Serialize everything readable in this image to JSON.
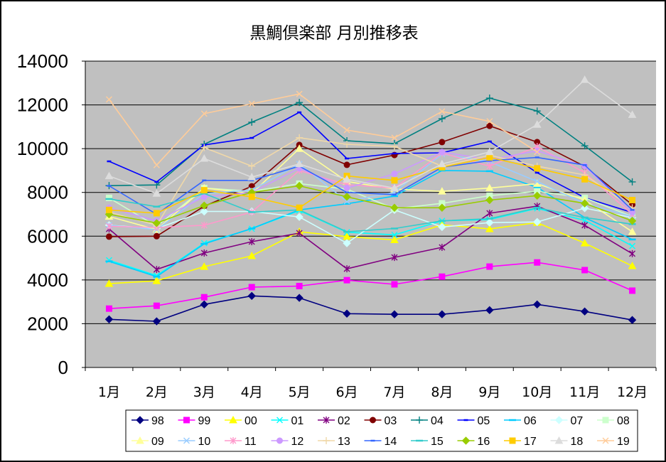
{
  "chart_data": {
    "type": "line",
    "title": "黒鯛倶楽部 月別推移表",
    "categories": [
      "1月",
      "2月",
      "3月",
      "4月",
      "5月",
      "6月",
      "7月",
      "8月",
      "9月",
      "10月",
      "11月",
      "12月"
    ],
    "ylim": [
      0,
      14000
    ],
    "yticks": [
      0,
      2000,
      4000,
      6000,
      8000,
      10000,
      12000,
      14000
    ],
    "grid": true,
    "legend": "bottom",
    "plot_background": "#C0C0C0",
    "series": [
      {
        "name": "98",
        "color": "#000080",
        "marker": "diamond",
        "values": [
          2200,
          2110,
          2880,
          3270,
          3180,
          2460,
          2430,
          2430,
          2620,
          2880,
          2560,
          2170
        ]
      },
      {
        "name": "99",
        "color": "#FF00FF",
        "marker": "square",
        "values": [
          2690,
          2820,
          3210,
          3670,
          3720,
          3990,
          3800,
          4150,
          4610,
          4800,
          4450,
          3510
        ]
      },
      {
        "name": "00",
        "color": "#FFFF00",
        "marker": "triangle",
        "values": [
          3830,
          3960,
          4610,
          5100,
          6200,
          5980,
          5830,
          6520,
          6330,
          6620,
          5680,
          4640
        ]
      },
      {
        "name": "01",
        "color": "#00FFFF",
        "marker": "x",
        "values": [
          4900,
          4200,
          5680,
          6340,
          7170,
          6180,
          6060,
          6700,
          6760,
          7270,
          6720,
          5550
        ]
      },
      {
        "name": "02",
        "color": "#800080",
        "marker": "asterisk",
        "values": [
          6330,
          4480,
          5230,
          5750,
          6140,
          4510,
          5030,
          5490,
          7050,
          7370,
          6500,
          5200
        ]
      },
      {
        "name": "03",
        "color": "#800000",
        "marker": "circle",
        "values": [
          5980,
          6000,
          7370,
          8280,
          10170,
          9260,
          9710,
          10300,
          11040,
          10300,
          9190,
          7440
        ]
      },
      {
        "name": "04",
        "color": "#008080",
        "marker": "plus",
        "values": [
          8310,
          8340,
          10200,
          11210,
          12110,
          10360,
          10230,
          11370,
          12310,
          11720,
          10130,
          8480
        ]
      },
      {
        "name": "05",
        "color": "#0000FF",
        "marker": "dash",
        "values": [
          9420,
          8480,
          10170,
          10490,
          11660,
          9550,
          9780,
          9810,
          10330,
          8900,
          7760,
          7080
        ]
      },
      {
        "name": "06",
        "color": "#00CCFF",
        "marker": "longdash",
        "values": [
          4850,
          4150,
          5650,
          6350,
          7200,
          7480,
          7830,
          9000,
          8970,
          8230,
          6850,
          5850
        ]
      },
      {
        "name": "07",
        "color": "#CCFFFF",
        "marker": "diamond",
        "values": [
          6500,
          6350,
          7130,
          7130,
          6880,
          5680,
          7200,
          6420,
          6620,
          6650,
          7280,
          6850
        ]
      },
      {
        "name": "08",
        "color": "#CCFFCC",
        "marker": "square",
        "values": [
          7750,
          6450,
          8200,
          8050,
          8400,
          8150,
          7250,
          7500,
          7850,
          8050,
          7750,
          6900
        ]
      },
      {
        "name": "09",
        "color": "#FFFF99",
        "marker": "triangle",
        "values": [
          6900,
          6300,
          8200,
          7950,
          10000,
          8500,
          8150,
          8050,
          8200,
          8400,
          7650,
          6200
        ]
      },
      {
        "name": "10",
        "color": "#99CCFF",
        "marker": "x",
        "values": [
          6500,
          6300,
          7950,
          8100,
          9300,
          7600,
          8000,
          9750,
          9400,
          8500,
          7500,
          6900
        ]
      },
      {
        "name": "11",
        "color": "#FF99CC",
        "marker": "asterisk",
        "values": [
          6450,
          6400,
          6500,
          7100,
          9000,
          8350,
          8200,
          9800,
          9200,
          10100,
          8900,
          7000
        ]
      },
      {
        "name": "12",
        "color": "#CC99FF",
        "marker": "circle",
        "values": [
          7300,
          6700,
          7800,
          8000,
          9100,
          8200,
          8850,
          9850,
          9500,
          9900,
          9200,
          7100
        ]
      },
      {
        "name": "13",
        "color": "#F0D8A8",
        "marker": "plus",
        "values": [
          7100,
          6500,
          10050,
          9200,
          10500,
          10200,
          10100,
          9200,
          9700,
          9200,
          8800,
          7300
        ]
      },
      {
        "name": "14",
        "color": "#3366FF",
        "marker": "dash",
        "values": [
          8300,
          7000,
          8550,
          8550,
          9200,
          8000,
          7900,
          9150,
          9450,
          9600,
          9250,
          7200
        ]
      },
      {
        "name": "15",
        "color": "#33CCCC",
        "marker": "longdash",
        "values": [
          7700,
          7350,
          7950,
          7100,
          7200,
          6200,
          6350,
          6700,
          6800,
          7300,
          6850,
          6550
        ]
      },
      {
        "name": "16",
        "color": "#99CC00",
        "marker": "diamond",
        "values": [
          7000,
          6600,
          7400,
          8000,
          8300,
          7800,
          7300,
          7300,
          7650,
          7850,
          7500,
          6700
        ]
      },
      {
        "name": "17",
        "color": "#FFCC00",
        "marker": "square",
        "values": [
          7200,
          7050,
          8100,
          7800,
          7300,
          8750,
          8550,
          9150,
          9600,
          9100,
          8600,
          7650
        ]
      },
      {
        "name": "18",
        "color": "#DCDCDC",
        "marker": "triangle",
        "values": [
          8750,
          7950,
          9550,
          8700,
          9300,
          8600,
          8200,
          9300,
          9850,
          11100,
          13150,
          11550
        ]
      },
      {
        "name": "19",
        "color": "#FFCC99",
        "marker": "x",
        "values": [
          12250,
          9250,
          11600,
          12050,
          12500,
          10850,
          10500,
          11700,
          11250,
          9850,
          null,
          null
        ]
      }
    ]
  }
}
